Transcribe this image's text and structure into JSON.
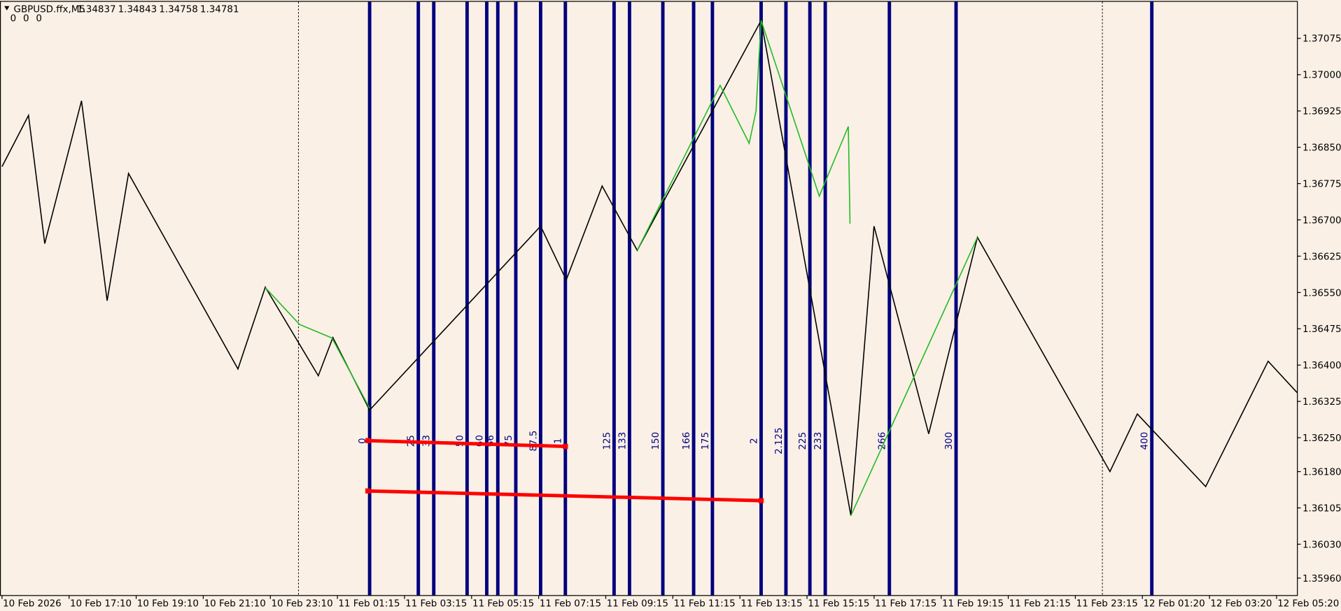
{
  "chart_data": {
    "type": "line",
    "title": "GBPUSD.ffx,M5",
    "ohlc": [
      1.34837,
      1.34843,
      1.34758,
      1.34781
    ],
    "indicator_values": [
      0,
      0,
      0
    ],
    "xlim": [
      -0.03,
      19.31
    ],
    "ylim": [
      1.35924,
      1.37154
    ],
    "xticks": [
      {
        "value": 0,
        "label": "10 Feb 2026"
      },
      {
        "value": 1,
        "label": "10 Feb 17:10"
      },
      {
        "value": 2,
        "label": "10 Feb 19:10"
      },
      {
        "value": 3,
        "label": "10 Feb 21:10"
      },
      {
        "value": 4,
        "label": "10 Feb 23:10"
      },
      {
        "value": 5,
        "label": "11 Feb 01:15"
      },
      {
        "value": 6,
        "label": "11 Feb 03:15"
      },
      {
        "value": 7,
        "label": "11 Feb 05:15"
      },
      {
        "value": 8,
        "label": "11 Feb 07:15"
      },
      {
        "value": 9,
        "label": "11 Feb 09:15"
      },
      {
        "value": 10,
        "label": "11 Feb 11:15"
      },
      {
        "value": 11,
        "label": "11 Feb 13:15"
      },
      {
        "value": 12,
        "label": "11 Feb 15:15"
      },
      {
        "value": 13,
        "label": "11 Feb 17:15"
      },
      {
        "value": 14,
        "label": "11 Feb 19:15"
      },
      {
        "value": 15,
        "label": "11 Feb 21:15"
      },
      {
        "value": 16,
        "label": "11 Feb 23:15"
      },
      {
        "value": 17,
        "label": "12 Feb 01:20"
      },
      {
        "value": 18,
        "label": "12 Feb 03:20"
      },
      {
        "value": 19,
        "label": "12 Feb 05:20"
      }
    ],
    "yticks": [
      1.37075,
      {
        "value": 1.37,
        "label": "1.37000"
      },
      1.36925,
      {
        "value": 1.3685,
        "label": "1.36850"
      },
      1.36775,
      {
        "value": 1.367,
        "label": "1.36700"
      },
      1.36625,
      {
        "value": 1.3655,
        "label": "1.36550"
      },
      1.36475,
      {
        "value": 1.364,
        "label": "1.36400"
      },
      1.36325,
      {
        "value": 1.3625,
        "label": "1.36250"
      },
      {
        "value": 1.3618,
        "label": "1.36180"
      },
      1.36105,
      {
        "value": 1.3603,
        "label": "1.36030"
      },
      {
        "value": 1.3596,
        "label": "1.35960"
      }
    ],
    "series": [
      {
        "color": "#000000",
        "x": [
          0,
          0.395,
          0.637,
          1.185,
          1.567,
          1.886,
          3.517,
          3.925,
          4.715,
          4.932,
          5.48,
          8.029,
          8.411,
          8.946,
          9.469,
          11.316,
          12.654,
          12.999,
          13.814,
          14.54,
          16.516,
          16.924,
          17.943,
          18.874,
          19.307
        ],
        "values": [
          1.3681,
          1.36916,
          1.36651,
          1.36946,
          1.36533,
          1.36796,
          1.36392,
          1.36561,
          1.36378,
          1.36457,
          1.36307,
          1.36687,
          1.36576,
          1.3677,
          1.36637,
          1.37112,
          1.36089,
          1.36687,
          1.36258,
          1.36664,
          1.3618,
          1.36299,
          1.36149,
          1.36408,
          1.36343
        ]
      },
      {
        "color": "#22bb22",
        "x": [
          3.925,
          4.435,
          4.919,
          5.48,
          null,
          9.469,
          10.705,
          11.138,
          11.24,
          11.316,
          12.183,
          12.616,
          12.641,
          null,
          12.654,
          14.54
        ],
        "values": [
          1.3656,
          1.36484,
          1.36456,
          1.36311,
          null,
          1.36637,
          1.36978,
          1.36858,
          1.36925,
          1.37112,
          1.36749,
          1.36893,
          1.36692,
          null,
          1.36089,
          1.36664
        ]
      },
      {
        "color": "#ff0000",
        "x": [
          5.454,
          8.398
        ],
        "values": [
          1.36244,
          1.36232
        ]
      },
      {
        "color": "#ff0000",
        "x": [
          5.454,
          11.316
        ],
        "values": [
          1.3614,
          1.3612
        ]
      }
    ],
    "time_levels_color": "#00007f",
    "time_levels": [
      {
        "label": "0",
        "x": 5.48
      },
      {
        "label": "25",
        "x": 6.206
      },
      {
        "label": "33",
        "x": 6.436
      },
      {
        "label": "50",
        "x": 6.933
      },
      {
        "label": "60",
        "x": 7.226
      },
      {
        "label": "66",
        "x": 7.391
      },
      {
        "label": "75",
        "x": 7.659
      },
      {
        "label": "87.5",
        "x": 8.029
      },
      {
        "label": "1",
        "x": 8.398
      },
      {
        "label": "125",
        "x": 9.124
      },
      {
        "label": "133",
        "x": 9.354
      },
      {
        "label": "150",
        "x": 9.851
      },
      {
        "label": "166",
        "x": 10.31
      },
      {
        "label": "175",
        "x": 10.59
      },
      {
        "label": "2",
        "x": 11.316
      },
      {
        "label": "2.125",
        "x": 11.686
      },
      {
        "label": "225",
        "x": 12.043
      },
      {
        "label": "233",
        "x": 12.272
      },
      {
        "label": "266",
        "x": 13.228
      },
      {
        "label": "300",
        "x": 14.222
      },
      {
        "label": "400",
        "x": 17.14
      }
    ]
  }
}
